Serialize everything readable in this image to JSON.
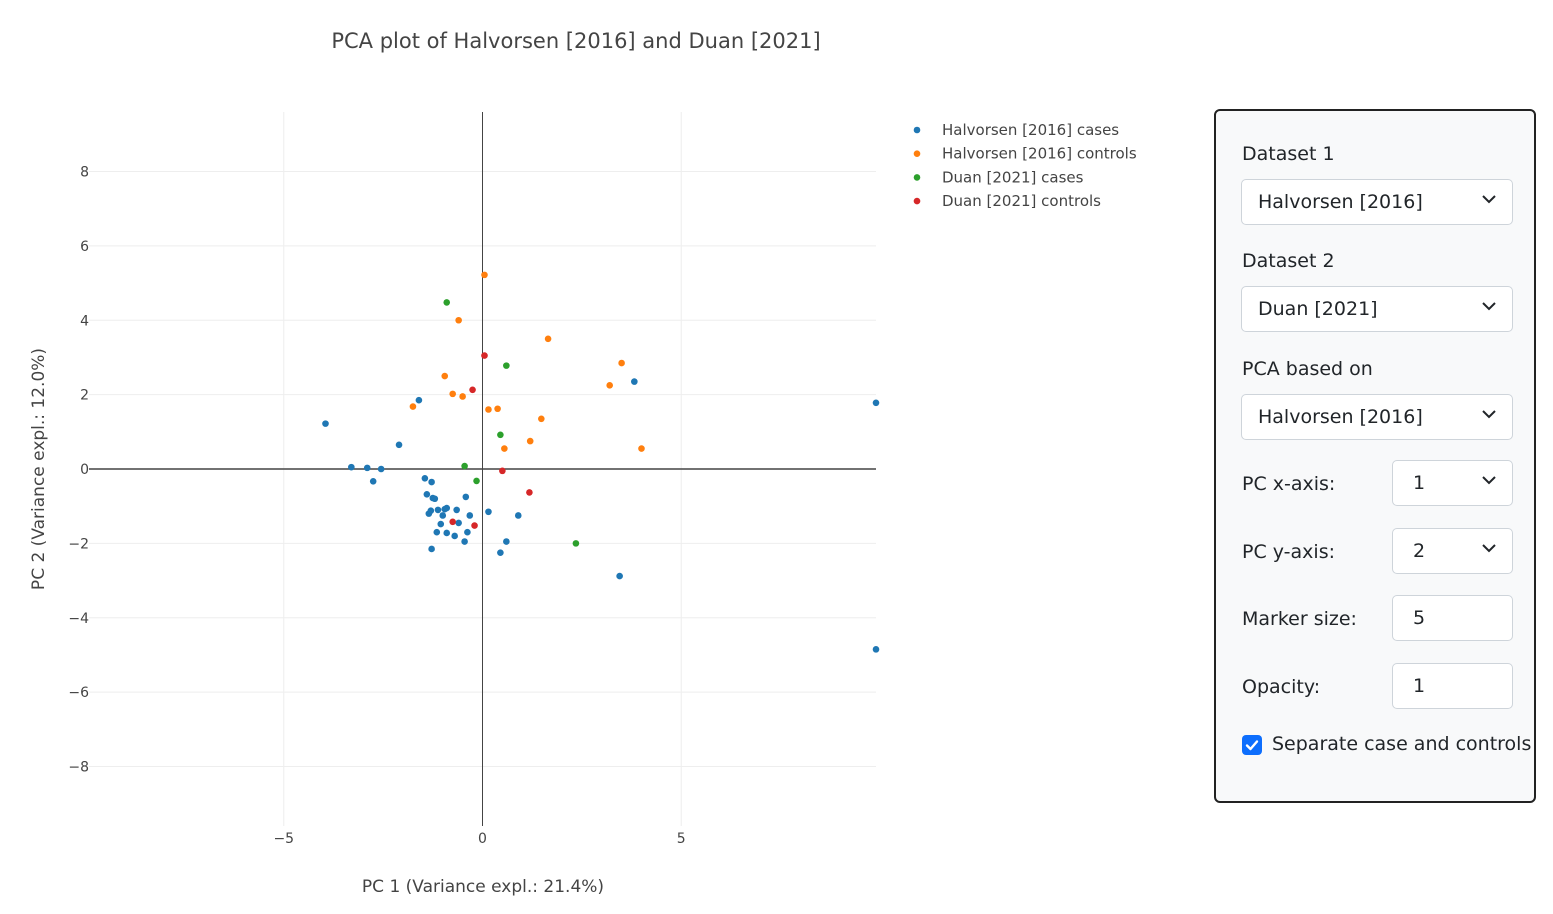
{
  "chart_data": {
    "type": "scatter",
    "title": "PCA plot of Halvorsen [2016] and Duan [2021]",
    "xlabel": "PC 1 (Variance expl.: 21.4%)",
    "ylabel": "PC 2 (Variance expl.: 12.0%)",
    "xlim": [
      -9.9,
      9.9
    ],
    "ylim": [
      -9.6,
      9.6
    ],
    "xticks": [
      -5,
      0,
      5
    ],
    "xtick_labels": [
      "−5",
      "0",
      "5"
    ],
    "yticks": [
      -8,
      -6,
      -4,
      -2,
      0,
      2,
      4,
      6,
      8
    ],
    "ytick_labels": [
      "−8",
      "−6",
      "−4",
      "−2",
      "0",
      "2",
      "4",
      "6",
      "8"
    ],
    "grid": true,
    "legend_position": "top-right, outside plot",
    "series": [
      {
        "name": "Halvorsen [2016] cases",
        "color": "#1f77b4",
        "points": [
          [
            -3.95,
            1.22
          ],
          [
            -3.3,
            0.05
          ],
          [
            -2.9,
            0.03
          ],
          [
            -2.75,
            -0.33
          ],
          [
            -2.55,
            0.0
          ],
          [
            -2.1,
            0.65
          ],
          [
            -1.6,
            1.85
          ],
          [
            -1.45,
            -0.25
          ],
          [
            -1.4,
            -0.68
          ],
          [
            -1.35,
            -1.2
          ],
          [
            -1.3,
            -1.12
          ],
          [
            -1.28,
            -0.35
          ],
          [
            -1.25,
            -0.78
          ],
          [
            -1.2,
            -0.8
          ],
          [
            -1.28,
            -2.15
          ],
          [
            -1.15,
            -1.7
          ],
          [
            -1.12,
            -1.1
          ],
          [
            -1.05,
            -1.48
          ],
          [
            -1.0,
            -1.25
          ],
          [
            -0.95,
            -1.08
          ],
          [
            -0.9,
            -1.05
          ],
          [
            -0.9,
            -1.72
          ],
          [
            -0.7,
            -1.8
          ],
          [
            -0.65,
            -1.1
          ],
          [
            -0.6,
            -1.45
          ],
          [
            -0.45,
            -1.95
          ],
          [
            -0.42,
            -0.75
          ],
          [
            -0.38,
            -1.7
          ],
          [
            -0.32,
            -1.25
          ],
          [
            0.15,
            -1.15
          ],
          [
            0.45,
            -2.25
          ],
          [
            0.6,
            -1.95
          ],
          [
            0.9,
            -1.25
          ],
          [
            3.45,
            -2.88
          ],
          [
            3.82,
            2.35
          ],
          [
            9.9,
            1.78
          ],
          [
            9.9,
            -4.85
          ]
        ]
      },
      {
        "name": "Halvorsen [2016] controls",
        "color": "#ff7f0e",
        "points": [
          [
            0.05,
            5.22
          ],
          [
            -0.6,
            4.0
          ],
          [
            1.65,
            3.5
          ],
          [
            -0.95,
            2.5
          ],
          [
            3.5,
            2.85
          ],
          [
            3.2,
            2.25
          ],
          [
            -0.75,
            2.02
          ],
          [
            -0.5,
            1.95
          ],
          [
            -1.75,
            1.68
          ],
          [
            0.15,
            1.6
          ],
          [
            0.38,
            1.62
          ],
          [
            1.48,
            1.35
          ],
          [
            1.2,
            0.75
          ],
          [
            0.55,
            0.55
          ],
          [
            4.0,
            0.55
          ]
        ]
      },
      {
        "name": "Duan [2021] cases",
        "color": "#2ca02c",
        "points": [
          [
            -0.9,
            4.48
          ],
          [
            0.6,
            2.78
          ],
          [
            0.45,
            0.92
          ],
          [
            -0.45,
            0.08
          ],
          [
            -0.15,
            -0.32
          ],
          [
            2.35,
            -2.0
          ]
        ]
      },
      {
        "name": "Duan [2021] controls",
        "color": "#d62728",
        "points": [
          [
            0.05,
            3.05
          ],
          [
            -0.25,
            2.13
          ],
          [
            0.5,
            -0.05
          ],
          [
            1.18,
            -0.63
          ],
          [
            -0.75,
            -1.42
          ],
          [
            -0.2,
            -1.52
          ]
        ]
      }
    ]
  },
  "controls": {
    "dataset1_label": "Dataset 1",
    "dataset1_value": "Halvorsen [2016]",
    "dataset2_label": "Dataset 2",
    "dataset2_value": "Duan [2021]",
    "pca_based_label": "PCA based on",
    "pca_based_value": "Halvorsen [2016]",
    "pcx_label": "PC x-axis:",
    "pcx_value": "1",
    "pcy_label": "PC y-axis:",
    "pcy_value": "2",
    "marker_size_label": "Marker size:",
    "marker_size_value": "5",
    "opacity_label": "Opacity:",
    "opacity_value": "1",
    "separate_label": "Separate case and controls",
    "separate_checked": true
  }
}
